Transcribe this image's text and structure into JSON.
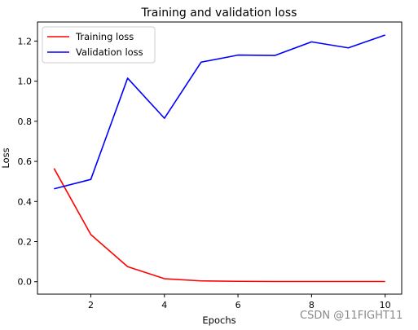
{
  "chart_data": {
    "type": "line",
    "title": "Training and validation loss",
    "xlabel": "Epochs",
    "ylabel": "Loss",
    "x": [
      1,
      2,
      3,
      4,
      5,
      6,
      7,
      8,
      9,
      10
    ],
    "xlim": [
      0.55,
      10.45
    ],
    "ylim": [
      -0.062,
      1.295
    ],
    "xticks": [
      2,
      4,
      6,
      8,
      10
    ],
    "yticks": [
      0.0,
      0.2,
      0.4,
      0.6,
      0.8,
      1.0,
      1.2
    ],
    "ytick_labels": [
      "0.0",
      "0.2",
      "0.4",
      "0.6",
      "0.8",
      "1.0",
      "1.2"
    ],
    "grid": false,
    "legend_position": "top-left",
    "series": [
      {
        "name": "Training loss",
        "color": "#ff0000",
        "values": [
          0.565,
          0.235,
          0.075,
          0.015,
          0.004,
          0.002,
          0.001,
          0.001,
          0.001,
          0.001
        ]
      },
      {
        "name": "Validation loss",
        "color": "#0000ff",
        "values": [
          0.463,
          0.51,
          1.015,
          0.815,
          1.095,
          1.13,
          1.128,
          1.196,
          1.166,
          1.23
        ]
      }
    ]
  },
  "watermark": "CSDN @11FIGHT11"
}
